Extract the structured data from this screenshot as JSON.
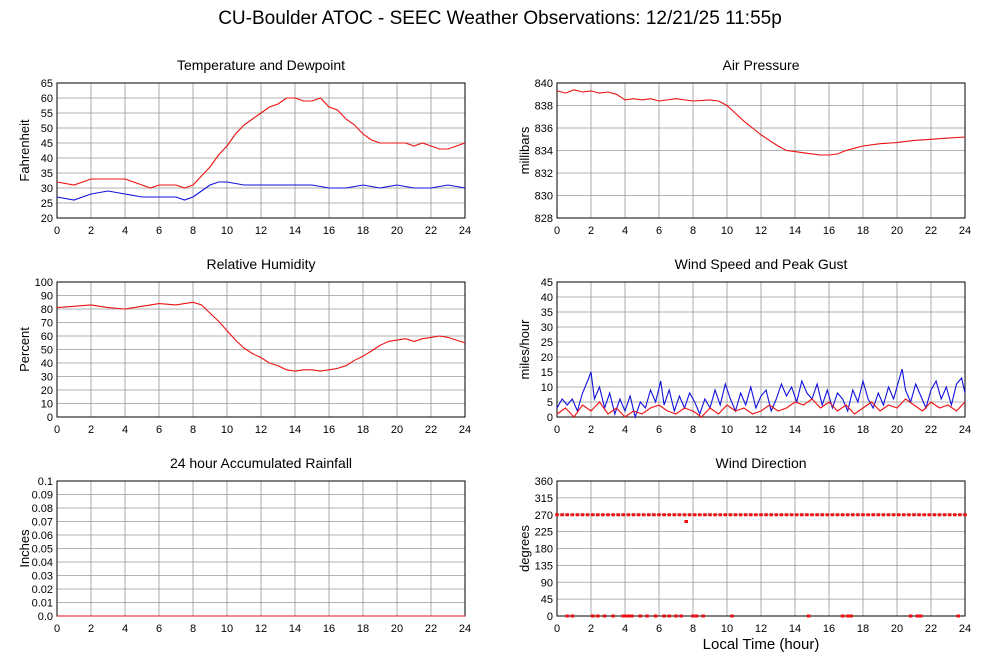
{
  "page": {
    "title": "CU-Boulder ATOC - SEEC Weather Observations: 12/21/25 11:55p",
    "shared_xlabel": "Local Time (hour)"
  },
  "colors": {
    "red": "#ee1111",
    "blue": "#1111dd",
    "grid": "#999999"
  },
  "chart_data": [
    {
      "id": "temp",
      "type": "line",
      "title": "Temperature and Dewpoint",
      "ylabel": "Fahrenheit",
      "xlim": [
        0,
        24
      ],
      "ylim": [
        20,
        65
      ],
      "xticks": [
        0,
        2,
        4,
        6,
        8,
        10,
        12,
        14,
        16,
        18,
        20,
        22,
        24
      ],
      "yticks": [
        20,
        25,
        30,
        35,
        40,
        45,
        50,
        55,
        60,
        65
      ],
      "series": [
        {
          "color": "red",
          "x": [
            0,
            1,
            2,
            3,
            4,
            5,
            5.5,
            6,
            7,
            7.5,
            8,
            8.5,
            9,
            9.5,
            10,
            10.5,
            11,
            11.5,
            12,
            12.5,
            13,
            13.5,
            14,
            14.5,
            15,
            15.5,
            16,
            16.5,
            17,
            17.5,
            18,
            18.5,
            19,
            19.5,
            20,
            20.5,
            21,
            21.5,
            22,
            22.5,
            23,
            23.5,
            24
          ],
          "y": [
            32,
            31,
            33,
            33,
            33,
            31,
            30,
            31,
            31,
            30,
            31,
            34,
            37,
            41,
            44,
            48,
            51,
            53,
            55,
            57,
            58,
            60,
            60,
            59,
            59,
            60,
            57,
            56,
            53,
            51,
            48,
            46,
            45,
            45,
            45,
            45,
            44,
            45,
            44,
            43,
            43,
            44,
            45
          ]
        },
        {
          "color": "blue",
          "x": [
            0,
            1,
            2,
            3,
            4,
            5,
            6,
            7,
            7.5,
            8,
            8.5,
            9,
            9.5,
            10,
            11,
            12,
            13,
            14,
            15,
            16,
            17,
            18,
            19,
            20,
            21,
            22,
            23,
            24
          ],
          "y": [
            27,
            26,
            28,
            29,
            28,
            27,
            27,
            27,
            26,
            27,
            29,
            31,
            32,
            32,
            31,
            31,
            31,
            31,
            31,
            30,
            30,
            31,
            30,
            31,
            30,
            30,
            31,
            30
          ]
        }
      ]
    },
    {
      "id": "pressure",
      "type": "line",
      "title": "Air Pressure",
      "ylabel": "millibars",
      "xlim": [
        0,
        24
      ],
      "ylim": [
        828,
        840
      ],
      "xticks": [
        0,
        2,
        4,
        6,
        8,
        10,
        12,
        14,
        16,
        18,
        20,
        22,
        24
      ],
      "yticks": [
        828,
        830,
        832,
        834,
        836,
        838,
        840
      ],
      "series": [
        {
          "color": "red",
          "x": [
            0,
            0.5,
            1,
            1.5,
            2,
            2.5,
            3,
            3.5,
            4,
            4.5,
            5,
            5.5,
            6,
            7,
            8,
            9,
            9.5,
            10,
            10.5,
            11,
            11.5,
            12,
            12.5,
            13,
            13.5,
            14,
            14.5,
            15,
            15.5,
            16,
            16.5,
            17,
            17.5,
            18,
            19,
            20,
            21,
            22,
            23,
            24
          ],
          "y": [
            839.3,
            839.1,
            839.4,
            839.2,
            839.3,
            839.1,
            839.2,
            839.0,
            838.5,
            838.6,
            838.5,
            838.6,
            838.4,
            838.6,
            838.4,
            838.5,
            838.4,
            838.0,
            837.3,
            836.6,
            836.0,
            835.4,
            834.9,
            834.4,
            834.0,
            833.9,
            833.8,
            833.7,
            833.6,
            833.6,
            833.7,
            834.0,
            834.2,
            834.4,
            834.6,
            834.7,
            834.9,
            835.0,
            835.1,
            835.2
          ]
        }
      ]
    },
    {
      "id": "rh",
      "type": "line",
      "title": "Relative Humidity",
      "ylabel": "Percent",
      "xlim": [
        0,
        24
      ],
      "ylim": [
        0,
        100
      ],
      "xticks": [
        0,
        2,
        4,
        6,
        8,
        10,
        12,
        14,
        16,
        18,
        20,
        22,
        24
      ],
      "yticks": [
        0,
        10,
        20,
        30,
        40,
        50,
        60,
        70,
        80,
        90,
        100
      ],
      "series": [
        {
          "color": "red",
          "x": [
            0,
            1,
            2,
            3,
            4,
            5,
            6,
            7,
            7.5,
            8,
            8.5,
            9,
            9.5,
            10,
            10.5,
            11,
            11.5,
            12,
            12.5,
            13,
            13.5,
            14,
            14.5,
            15,
            15.5,
            16,
            16.5,
            17,
            17.5,
            18,
            18.5,
            19,
            19.5,
            20,
            20.5,
            21,
            21.5,
            22,
            22.5,
            23,
            23.5,
            24
          ],
          "y": [
            81,
            82,
            83,
            81,
            80,
            82,
            84,
            83,
            84,
            85,
            83,
            77,
            71,
            64,
            57,
            51,
            47,
            44,
            40,
            38,
            35,
            34,
            35,
            35,
            34,
            35,
            36,
            38,
            42,
            45,
            49,
            53,
            56,
            57,
            58,
            56,
            58,
            59,
            60,
            59,
            57,
            55
          ]
        }
      ]
    },
    {
      "id": "wind",
      "type": "line",
      "title": "Wind Speed and Peak Gust",
      "ylabel": "miles/hour",
      "xlim": [
        0,
        24
      ],
      "ylim": [
        0,
        45
      ],
      "xticks": [
        0,
        2,
        4,
        6,
        8,
        10,
        12,
        14,
        16,
        18,
        20,
        22,
        24
      ],
      "yticks": [
        0,
        5,
        10,
        15,
        20,
        25,
        30,
        35,
        40,
        45
      ],
      "series": [
        {
          "color": "blue",
          "x": [
            0,
            0.3,
            0.6,
            0.9,
            1.2,
            1.5,
            1.8,
            2,
            2.2,
            2.5,
            2.8,
            3.1,
            3.4,
            3.7,
            4,
            4.3,
            4.6,
            4.9,
            5.2,
            5.5,
            5.8,
            6.1,
            6.3,
            6.6,
            6.9,
            7.2,
            7.5,
            7.8,
            8.1,
            8.4,
            8.7,
            9,
            9.3,
            9.6,
            9.9,
            10.2,
            10.5,
            10.8,
            11.1,
            11.4,
            11.7,
            12,
            12.3,
            12.6,
            12.9,
            13.2,
            13.5,
            13.8,
            14.1,
            14.4,
            14.7,
            15,
            15.3,
            15.6,
            15.9,
            16.2,
            16.5,
            16.8,
            17.1,
            17.4,
            17.7,
            18,
            18.3,
            18.6,
            18.9,
            19.2,
            19.5,
            19.8,
            20.1,
            20.3,
            20.5,
            20.8,
            21.1,
            21.4,
            21.7,
            22,
            22.3,
            22.6,
            22.9,
            23.2,
            23.5,
            23.8,
            24
          ],
          "y": [
            3,
            6,
            4,
            6,
            2,
            8,
            12,
            15,
            6,
            10,
            3,
            8,
            1,
            6,
            2,
            7,
            0,
            5,
            3,
            9,
            5,
            12,
            4,
            9,
            2,
            7,
            3,
            8,
            5,
            1,
            6,
            3,
            9,
            4,
            11,
            6,
            2,
            8,
            4,
            10,
            3,
            7,
            9,
            2,
            6,
            11,
            7,
            10,
            5,
            12,
            8,
            6,
            11,
            4,
            9,
            3,
            8,
            6,
            2,
            9,
            5,
            12,
            6,
            3,
            8,
            4,
            10,
            6,
            12,
            16,
            9,
            5,
            11,
            7,
            3,
            9,
            12,
            6,
            10,
            4,
            11,
            13,
            8
          ]
        },
        {
          "color": "red",
          "x": [
            0,
            0.5,
            1,
            1.5,
            2,
            2.5,
            3,
            3.5,
            4,
            4.5,
            5,
            5.5,
            6,
            6.5,
            7,
            7.5,
            8,
            8.5,
            9,
            9.5,
            10,
            10.5,
            11,
            11.5,
            12,
            12.5,
            13,
            13.5,
            14,
            14.5,
            15,
            15.5,
            16,
            16.5,
            17,
            17.5,
            18,
            18.5,
            19,
            19.5,
            20,
            20.5,
            21,
            21.5,
            22,
            22.5,
            23,
            23.5,
            24
          ],
          "y": [
            1,
            3,
            0,
            4,
            2,
            5,
            1,
            3,
            0,
            2,
            1,
            3,
            4,
            2,
            1,
            3,
            2,
            0,
            3,
            1,
            4,
            2,
            3,
            1,
            2,
            4,
            2,
            3,
            5,
            4,
            6,
            3,
            5,
            2,
            4,
            1,
            3,
            5,
            2,
            4,
            3,
            6,
            4,
            2,
            5,
            3,
            4,
            2,
            5
          ]
        }
      ]
    },
    {
      "id": "rain",
      "type": "line",
      "title": "24 hour Accumulated Rainfall",
      "ylabel": "Inches",
      "xlim": [
        0,
        24
      ],
      "ylim": [
        0,
        0.1
      ],
      "xticks": [
        0,
        2,
        4,
        6,
        8,
        10,
        12,
        14,
        16,
        18,
        20,
        22,
        24
      ],
      "yticks": [
        0,
        0.01,
        0.02,
        0.03,
        0.04,
        0.05,
        0.06,
        0.07,
        0.08,
        0.09,
        0.1
      ],
      "ytick_labels": [
        "0.0",
        "0.01",
        "0.02",
        "0.03",
        "0.04",
        "0.05",
        "0.06",
        "0.07",
        "0.08",
        "0.09",
        "0.1"
      ],
      "series": [
        {
          "color": "red",
          "x": [
            0,
            24
          ],
          "y": [
            0,
            0
          ]
        }
      ]
    },
    {
      "id": "dir",
      "type": "scatter",
      "title": "Wind Direction",
      "ylabel": "degrees",
      "xlim": [
        0,
        24
      ],
      "ylim": [
        0,
        360
      ],
      "xticks": [
        0,
        2,
        4,
        6,
        8,
        10,
        12,
        14,
        16,
        18,
        20,
        22,
        24
      ],
      "yticks": [
        0,
        45,
        90,
        135,
        180,
        225,
        270,
        315,
        360
      ],
      "series": [
        {
          "color": "red",
          "x": [
            0,
            0.3,
            0.6,
            0.9,
            1.2,
            1.5,
            1.8,
            2.1,
            2.4,
            2.7,
            3.0,
            3.3,
            3.6,
            3.9,
            4.2,
            4.5,
            4.8,
            5.1,
            5.4,
            5.7,
            6.0,
            6.3,
            6.6,
            6.9,
            7.2,
            7.5,
            7.8,
            8.1,
            8.4,
            8.7,
            9.0,
            9.3,
            9.6,
            9.9,
            10.2,
            10.5,
            10.8,
            11.1,
            11.4,
            11.7,
            12.0,
            12.3,
            12.6,
            12.9,
            13.2,
            13.5,
            13.8,
            14.1,
            14.4,
            14.7,
            15.0,
            15.3,
            15.6,
            15.9,
            16.2,
            16.5,
            16.8,
            17.1,
            17.4,
            17.7,
            18.0,
            18.3,
            18.6,
            18.9,
            19.2,
            19.5,
            19.8,
            20.1,
            20.4,
            20.7,
            21.0,
            21.3,
            21.6,
            21.9,
            22.2,
            22.5,
            22.8,
            23.1,
            23.4,
            23.7,
            24.0,
            7.6,
            0.6,
            0.9,
            2.1,
            2.4,
            2.8,
            3.3,
            3.9,
            4.0,
            4.2,
            4.4,
            4.9,
            5.3,
            5.8,
            6.3,
            6.6,
            7.0,
            7.3,
            8.0,
            8.2,
            8.6,
            10.3,
            14.8,
            16.8,
            17.1,
            17.3,
            20.8,
            21.2,
            21.4,
            23.6
          ],
          "y": [
            270,
            270,
            270,
            270,
            270,
            270,
            270,
            270,
            270,
            270,
            270,
            270,
            270,
            270,
            270,
            270,
            270,
            270,
            270,
            270,
            270,
            270,
            270,
            270,
            270,
            270,
            270,
            270,
            270,
            270,
            270,
            270,
            270,
            270,
            270,
            270,
            270,
            270,
            270,
            270,
            270,
            270,
            270,
            270,
            270,
            270,
            270,
            270,
            270,
            270,
            270,
            270,
            270,
            270,
            270,
            270,
            270,
            270,
            270,
            270,
            270,
            270,
            270,
            270,
            270,
            270,
            270,
            270,
            270,
            270,
            270,
            270,
            270,
            270,
            270,
            270,
            270,
            270,
            270,
            270,
            270,
            252,
            0,
            0,
            0,
            0,
            0,
            0,
            0,
            0,
            0,
            0,
            0,
            0,
            0,
            0,
            0,
            0,
            0,
            0,
            0,
            0,
            0,
            0,
            0,
            0,
            0,
            0,
            0,
            0,
            0
          ]
        }
      ]
    }
  ]
}
